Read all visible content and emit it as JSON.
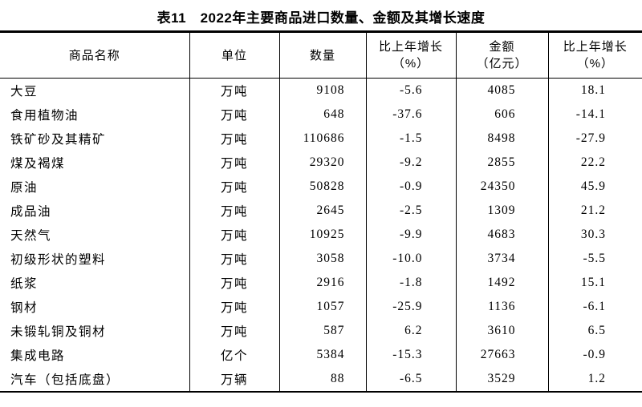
{
  "title": "表11　2022年主要商品进口数量、金额及其增长速度",
  "colors": {
    "background": "#ffffff",
    "text": "#000000",
    "border": "#000000"
  },
  "table": {
    "columns": [
      {
        "key": "name",
        "label": "商品名称",
        "sublabel": ""
      },
      {
        "key": "unit",
        "label": "单位",
        "sublabel": ""
      },
      {
        "key": "qty",
        "label": "数量",
        "sublabel": ""
      },
      {
        "key": "qgrowth",
        "label": "比上年增长",
        "sublabel": "（%）"
      },
      {
        "key": "val",
        "label": "金额",
        "sublabel": "（亿元）"
      },
      {
        "key": "vgrowth",
        "label": "比上年增长",
        "sublabel": "（%）"
      }
    ],
    "rows": [
      [
        "大豆",
        "万吨",
        "9108",
        "-5.6",
        "4085",
        "18.1"
      ],
      [
        "食用植物油",
        "万吨",
        "648",
        "-37.6",
        "606",
        "-14.1"
      ],
      [
        "铁矿砂及其精矿",
        "万吨",
        "110686",
        "-1.5",
        "8498",
        "-27.9"
      ],
      [
        "煤及褐煤",
        "万吨",
        "29320",
        "-9.2",
        "2855",
        "22.2"
      ],
      [
        "原油",
        "万吨",
        "50828",
        "-0.9",
        "24350",
        "45.9"
      ],
      [
        "成品油",
        "万吨",
        "2645",
        "-2.5",
        "1309",
        "21.2"
      ],
      [
        "天然气",
        "万吨",
        "10925",
        "-9.9",
        "4683",
        "30.3"
      ],
      [
        "初级形状的塑料",
        "万吨",
        "3058",
        "-10.0",
        "3734",
        "-5.5"
      ],
      [
        "纸浆",
        "万吨",
        "2916",
        "-1.8",
        "1492",
        "15.1"
      ],
      [
        "钢材",
        "万吨",
        "1057",
        "-25.9",
        "1136",
        "-6.1"
      ],
      [
        "未锻轧铜及铜材",
        "万吨",
        "587",
        "6.2",
        "3610",
        "6.5"
      ],
      [
        "集成电路",
        "亿个",
        "5384",
        "-15.3",
        "27663",
        "-0.9"
      ],
      [
        "汽车（包括底盘）",
        "万辆",
        "88",
        "-6.5",
        "3529",
        "1.2"
      ]
    ]
  }
}
